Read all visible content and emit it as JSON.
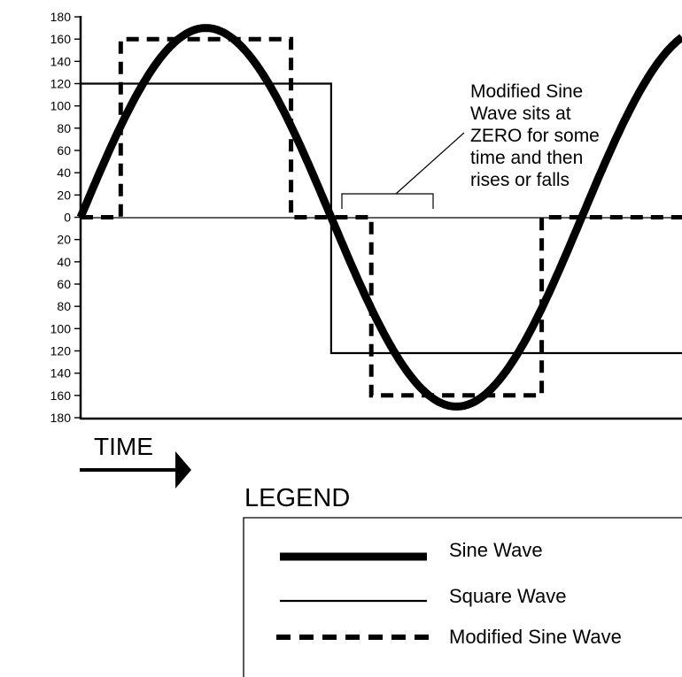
{
  "chart_data": {
    "type": "line",
    "title": "",
    "xlabel": "TIME",
    "ylabel": "",
    "y_tick_labels": [
      "180",
      "160",
      "140",
      "120",
      "100",
      "80",
      "60",
      "40",
      "20",
      "0",
      "20",
      "40",
      "60",
      "80",
      "100",
      "120",
      "140",
      "160",
      "180"
    ],
    "y_tick_values": [
      180,
      160,
      140,
      120,
      100,
      80,
      60,
      40,
      20,
      0,
      -20,
      -40,
      -60,
      -80,
      -100,
      -120,
      -140,
      -160,
      -180
    ],
    "ylim": [
      -180,
      180
    ],
    "xlim": [
      0,
      1.2
    ],
    "grid": false,
    "series": [
      {
        "name": "Sine Wave",
        "style": "thick-solid",
        "function": "170*sin(2*pi*x)",
        "x": [
          0,
          0.125,
          0.25,
          0.375,
          0.5,
          0.625,
          0.75,
          0.875,
          1.0,
          1.125,
          1.2
        ],
        "values": [
          0,
          120,
          170,
          120,
          0,
          -120,
          -170,
          -120,
          0,
          120,
          163
        ]
      },
      {
        "name": "Square Wave",
        "style": "thin-solid",
        "x": [
          0,
          0,
          0.5,
          0.5,
          1.2
        ],
        "values": [
          0,
          120,
          120,
          -122,
          -122
        ]
      },
      {
        "name": "Modified Sine Wave",
        "style": "dashed",
        "x": [
          0,
          0.08,
          0.08,
          0.42,
          0.42,
          0.58,
          0.58,
          0.92,
          0.92,
          1.2
        ],
        "values": [
          0,
          0,
          160,
          160,
          0,
          0,
          -160,
          -160,
          0,
          0
        ]
      }
    ],
    "annotation": {
      "lines": [
        "Modified Sine",
        "Wave sits at",
        "ZERO for some",
        "time and then",
        "rises or falls"
      ]
    },
    "legend": {
      "title": "LEGEND",
      "placement": "bottom-right",
      "entries": [
        "Sine Wave",
        "Square Wave",
        "Modified Sine Wave"
      ]
    }
  },
  "colors": {
    "line": "#000000",
    "background": "#ffffff"
  }
}
